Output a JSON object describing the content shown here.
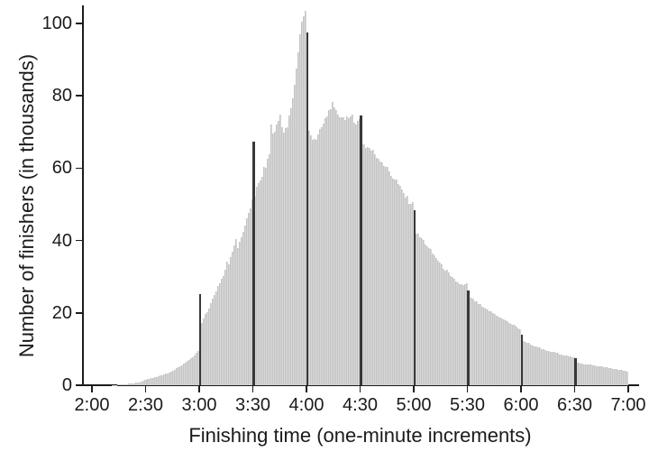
{
  "chart_data": {
    "type": "bar",
    "title": "",
    "xlabel": "Finishing time (one-minute increments)",
    "ylabel": "Number of finishers (in thousands)",
    "bin_width_minutes": 1,
    "grid": false,
    "legend": false,
    "x_axis": {
      "range_minutes": [
        120,
        420
      ],
      "tick_minutes": [
        120,
        150,
        180,
        210,
        240,
        270,
        300,
        330,
        360,
        390,
        420
      ],
      "tick_labels": [
        "2:00",
        "2:30",
        "3:00",
        "3:30",
        "4:00",
        "4:30",
        "5:00",
        "5:30",
        "6:00",
        "6:30",
        "7:00"
      ]
    },
    "y_axis": {
      "ticks": [
        0,
        20,
        40,
        60,
        80,
        100
      ],
      "tick_labels": [
        "0",
        "20",
        "40",
        "60",
        "80",
        "100"
      ],
      "ylim": [
        0,
        105
      ]
    },
    "peak": {
      "minute": 239,
      "time": "3:59",
      "value_thousands": 103.6
    },
    "round_time_spikes_thousands": {
      "180": 25.3,
      "210": 67.3,
      "240": 97.5,
      "270": 74.5,
      "300": 48.4,
      "330": 26.3,
      "360": 14.0,
      "390": 7.6
    },
    "envelope_points_min_thousands": [
      [
        120,
        0.02
      ],
      [
        126,
        0.04
      ],
      [
        130,
        0.08
      ],
      [
        134,
        0.15
      ],
      [
        138,
        0.3
      ],
      [
        142,
        0.5
      ],
      [
        146,
        0.8
      ],
      [
        150,
        1.6
      ],
      [
        153,
        1.9
      ],
      [
        156,
        2.3
      ],
      [
        159,
        2.8
      ],
      [
        162,
        3.3
      ],
      [
        165,
        4.1
      ],
      [
        168,
        4.9
      ],
      [
        171,
        5.9
      ],
      [
        174,
        7.0
      ],
      [
        177,
        8.2
      ],
      [
        179,
        9.6
      ],
      [
        181,
        17.3
      ],
      [
        183,
        19.5
      ],
      [
        186,
        22.5
      ],
      [
        190,
        27.5
      ],
      [
        193,
        30.5
      ],
      [
        194,
        31.7
      ],
      [
        195,
        34.2
      ],
      [
        196,
        33.5
      ],
      [
        198,
        37.2
      ],
      [
        200,
        40.4
      ],
      [
        201,
        38.2
      ],
      [
        203,
        41.0
      ],
      [
        204,
        42.1
      ],
      [
        206,
        46.2
      ],
      [
        208,
        48.5
      ],
      [
        209,
        51.5
      ],
      [
        211,
        52.5
      ],
      [
        212,
        54.5
      ],
      [
        214,
        56.5
      ],
      [
        216,
        59.5
      ],
      [
        218,
        62.0
      ],
      [
        219,
        64.0
      ],
      [
        220,
        72.0
      ],
      [
        221,
        69.5
      ],
      [
        222,
        70.5
      ],
      [
        224,
        73.0
      ],
      [
        225,
        74.8
      ],
      [
        226,
        72.0
      ],
      [
        227,
        69.8
      ],
      [
        228,
        70.5
      ],
      [
        229,
        71.5
      ],
      [
        230,
        74.0
      ],
      [
        231,
        76.5
      ],
      [
        232,
        79.0
      ],
      [
        233,
        83.0
      ],
      [
        234,
        87.5
      ],
      [
        235,
        92.0
      ],
      [
        236,
        97.0
      ],
      [
        237,
        100.5
      ],
      [
        238,
        102.0
      ],
      [
        239,
        103.6
      ],
      [
        241,
        70.0
      ],
      [
        242,
        69.0
      ],
      [
        243,
        68.5
      ],
      [
        245,
        68.0
      ],
      [
        247,
        70.0
      ],
      [
        249,
        72.3
      ],
      [
        251,
        74.6
      ],
      [
        253,
        77.0
      ],
      [
        254,
        77.6
      ],
      [
        255,
        76.0
      ],
      [
        256,
        75.5
      ],
      [
        258,
        74.5
      ],
      [
        260,
        74.0
      ],
      [
        262,
        74.2
      ],
      [
        263,
        73.0
      ],
      [
        264,
        73.5
      ],
      [
        265,
        74.9
      ],
      [
        266,
        73.5
      ],
      [
        267,
        72.5
      ],
      [
        268,
        72.8
      ],
      [
        269,
        73.3
      ],
      [
        271,
        67.0
      ],
      [
        273,
        66.0
      ],
      [
        275,
        65.5
      ],
      [
        277,
        64.5
      ],
      [
        279,
        63.3
      ],
      [
        281,
        62.5
      ],
      [
        283,
        61.0
      ],
      [
        284,
        60.5
      ],
      [
        286,
        59.0
      ],
      [
        288,
        57.5
      ],
      [
        290,
        56.5
      ],
      [
        292,
        54.5
      ],
      [
        294,
        53.0
      ],
      [
        296,
        51.5
      ],
      [
        298,
        50.5
      ],
      [
        299,
        50.0
      ],
      [
        301,
        42.0
      ],
      [
        303,
        41.0
      ],
      [
        305,
        40.0
      ],
      [
        307,
        38.5
      ],
      [
        310,
        36.5
      ],
      [
        313,
        34.5
      ],
      [
        315,
        33.0
      ],
      [
        318,
        31.5
      ],
      [
        320,
        30.0
      ],
      [
        323,
        28.8
      ],
      [
        325,
        28.0
      ],
      [
        327,
        27.6
      ],
      [
        329,
        27.9
      ],
      [
        331,
        24.3
      ],
      [
        333,
        23.8
      ],
      [
        335,
        23.0
      ],
      [
        338,
        21.7
      ],
      [
        340,
        21.0
      ],
      [
        343,
        20.3
      ],
      [
        346,
        19.3
      ],
      [
        349,
        18.5
      ],
      [
        352,
        17.6
      ],
      [
        355,
        16.8
      ],
      [
        357,
        16.2
      ],
      [
        359,
        15.6
      ],
      [
        361,
        12.2
      ],
      [
        363,
        11.8
      ],
      [
        365,
        11.3
      ],
      [
        368,
        10.6
      ],
      [
        370,
        10.3
      ],
      [
        373,
        9.8
      ],
      [
        376,
        9.3
      ],
      [
        379,
        8.9
      ],
      [
        382,
        8.5
      ],
      [
        385,
        8.1
      ],
      [
        387,
        7.8
      ],
      [
        389,
        7.6
      ],
      [
        391,
        6.3
      ],
      [
        393,
        6.1
      ],
      [
        396,
        5.8
      ],
      [
        400,
        5.5
      ],
      [
        404,
        5.2
      ],
      [
        408,
        4.9
      ],
      [
        412,
        4.5
      ],
      [
        415,
        4.2
      ],
      [
        418,
        3.9
      ],
      [
        419,
        3.8
      ]
    ]
  },
  "style": {
    "background": "#ffffff",
    "bar_fill": "#d9d9d9",
    "bar_stripe": "#c3c3c3",
    "spike_color": "#383838",
    "axis_color": "#1c1c1c",
    "text_color": "#1b1b1b"
  }
}
